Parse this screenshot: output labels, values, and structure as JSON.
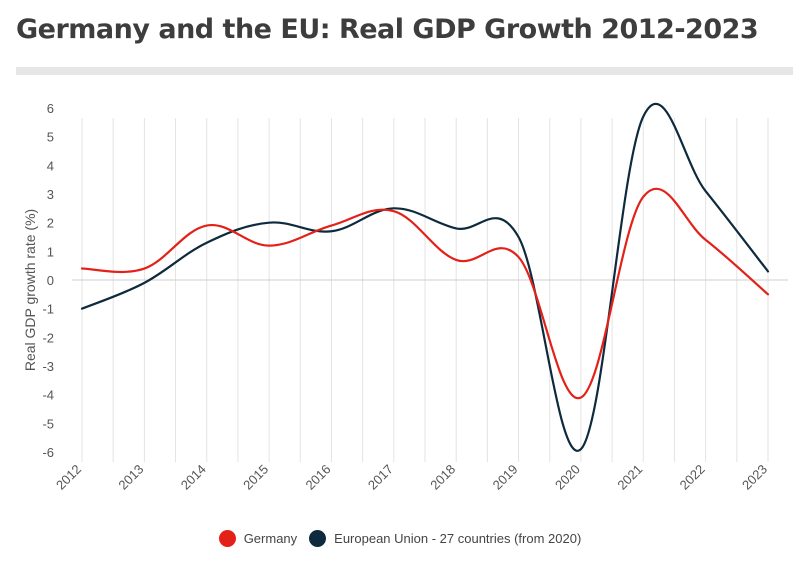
{
  "title": "Germany and the EU: Real GDP Growth 2012-2023",
  "chart_data": {
    "type": "line",
    "title": "Germany and the EU: Real GDP Growth 2012-2023",
    "xlabel": "",
    "ylabel": "Real GDP growth rate (%)",
    "x": [
      "2012",
      "2013",
      "2014",
      "2015",
      "2016",
      "2017",
      "2018",
      "2019",
      "2020",
      "2021",
      "2022",
      "2023"
    ],
    "ylim": [
      -6,
      6
    ],
    "yticks": [
      "6",
      "5",
      "4",
      "3",
      "2",
      "1",
      "0",
      "-1",
      "-2",
      "-3",
      "-4",
      "-5",
      "-6"
    ],
    "grid": "vertical",
    "legend_position": "bottom",
    "series": [
      {
        "name": "Germany",
        "color": "#e32119",
        "values": [
          0.4,
          0.4,
          1.9,
          1.2,
          1.9,
          2.4,
          0.7,
          0.8,
          -4.1,
          2.9,
          1.4,
          -0.5
        ]
      },
      {
        "name": "European Union - 27 countries (from 2020)",
        "color": "#0e2a3d",
        "values": [
          -1.0,
          -0.1,
          1.3,
          2.0,
          1.7,
          2.5,
          1.8,
          1.5,
          -5.9,
          5.7,
          3.1,
          0.3
        ]
      }
    ]
  }
}
